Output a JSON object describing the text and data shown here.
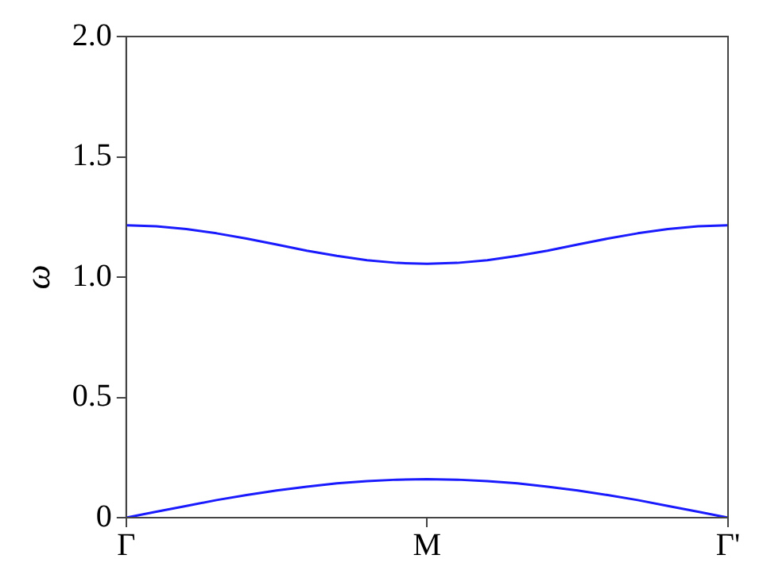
{
  "chart_data": {
    "type": "line",
    "ylabel": "ω",
    "ylim": [
      0,
      2
    ],
    "yticks": [
      0,
      0.5,
      {
        "value": 1,
        "label": "1.0"
      },
      1.5,
      {
        "value": 2,
        "label": "2.0"
      }
    ],
    "grid": false,
    "legend": false,
    "marker": "none",
    "line_style": "solid",
    "categories": [
      "Γ",
      null,
      null,
      null,
      null,
      null,
      null,
      null,
      null,
      null,
      "M",
      null,
      null,
      null,
      null,
      null,
      null,
      null,
      null,
      null,
      "Γ'"
    ],
    "series": [
      {
        "color": "#1a1aff",
        "values": [
          1.215,
          1.211,
          1.2,
          1.182,
          1.16,
          1.135,
          1.11,
          1.088,
          1.07,
          1.059,
          1.055,
          1.059,
          1.07,
          1.088,
          1.11,
          1.135,
          1.16,
          1.182,
          1.2,
          1.211,
          1.215
        ]
      },
      {
        "color": "#1a1aff",
        "values": [
          0,
          0.025,
          0.049,
          0.073,
          0.094,
          0.113,
          0.129,
          0.143,
          0.152,
          0.158,
          0.16,
          0.158,
          0.152,
          0.143,
          0.129,
          0.113,
          0.094,
          0.073,
          0.049,
          0.025,
          0
        ]
      }
    ]
  }
}
